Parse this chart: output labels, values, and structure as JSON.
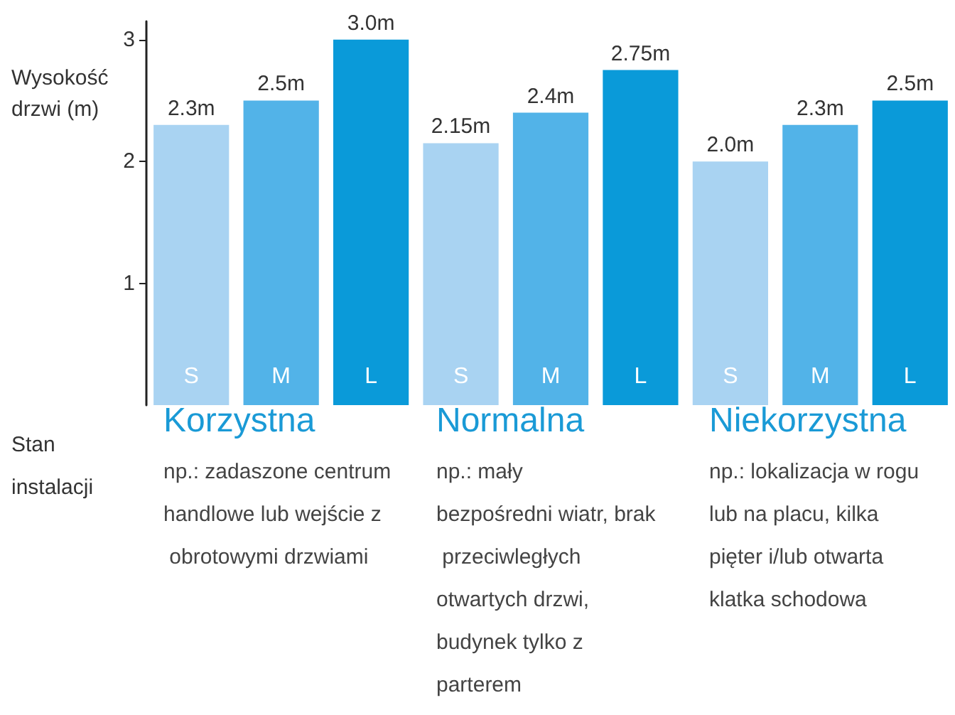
{
  "chart_data": {
    "type": "bar",
    "ylabel": "Wysokość drzwi (m)",
    "categories": [
      "S",
      "M",
      "L",
      "S",
      "M",
      "L",
      "S",
      "M",
      "L"
    ],
    "values": [
      2.3,
      2.5,
      3.0,
      2.15,
      2.4,
      2.75,
      2.0,
      2.3,
      2.5
    ],
    "value_labels": [
      "2.3m",
      "2.5m",
      "3.0m",
      "2.15m",
      "2.4m",
      "2.75m",
      "2.0m",
      "2.3m",
      "2.5m"
    ],
    "colors": [
      "#a9d3f2",
      "#52b3e8",
      "#0a9ad9",
      "#a9d3f2",
      "#52b3e8",
      "#0a9ad9",
      "#a9d3f2",
      "#52b3e8",
      "#0a9ad9"
    ],
    "ylim": [
      0,
      3.15
    ],
    "yticks": [
      1,
      2,
      3
    ],
    "grid": false,
    "annotations": [
      "Stan instalacji",
      "Korzystna",
      "np.: zadaszone centrum handlowe lub wejście z obrotowymi drzwiami",
      "Normalna",
      "np.: mały bezpośredni wiatr, brak przeciwległych otwartych drzwi, budynek tylko z parterem",
      "Niekorzystna",
      "np.: lokalizacja w rogu lub na placu, kilka pięter i/lub otwarta klatka schodowa"
    ]
  }
}
